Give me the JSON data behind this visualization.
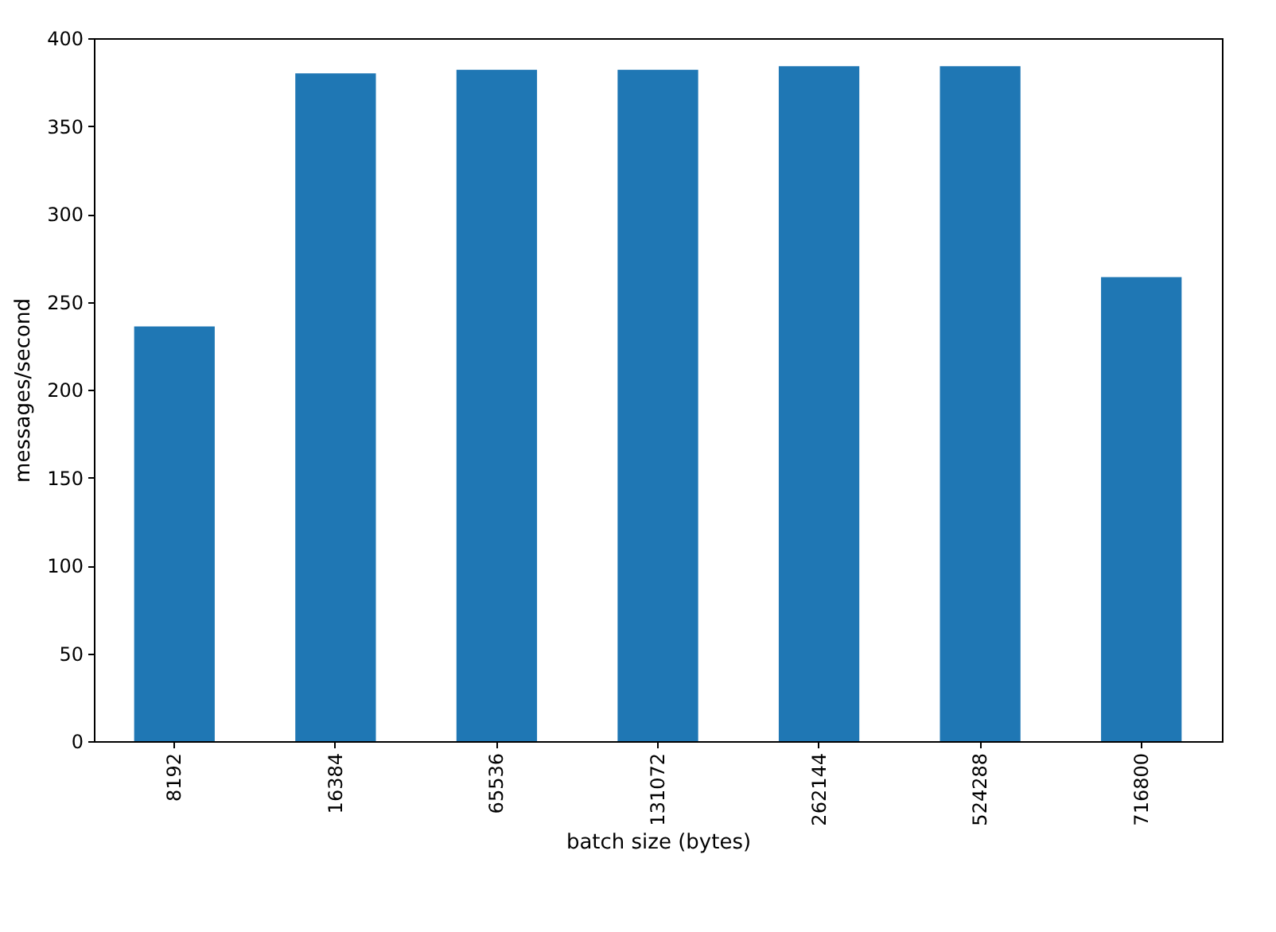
{
  "chart_data": {
    "type": "bar",
    "xlabel": "batch size (bytes)",
    "ylabel": "messages/second",
    "categories": [
      "8192",
      "16384",
      "65536",
      "131072",
      "262144",
      "524288",
      "716800"
    ],
    "values": [
      236,
      380,
      382,
      382,
      384,
      384,
      264
    ],
    "color": "#1f77b4",
    "ylim": [
      0,
      400
    ],
    "yticks": [
      0,
      50,
      100,
      150,
      200,
      250,
      300,
      350,
      400
    ],
    "grid": false
  }
}
